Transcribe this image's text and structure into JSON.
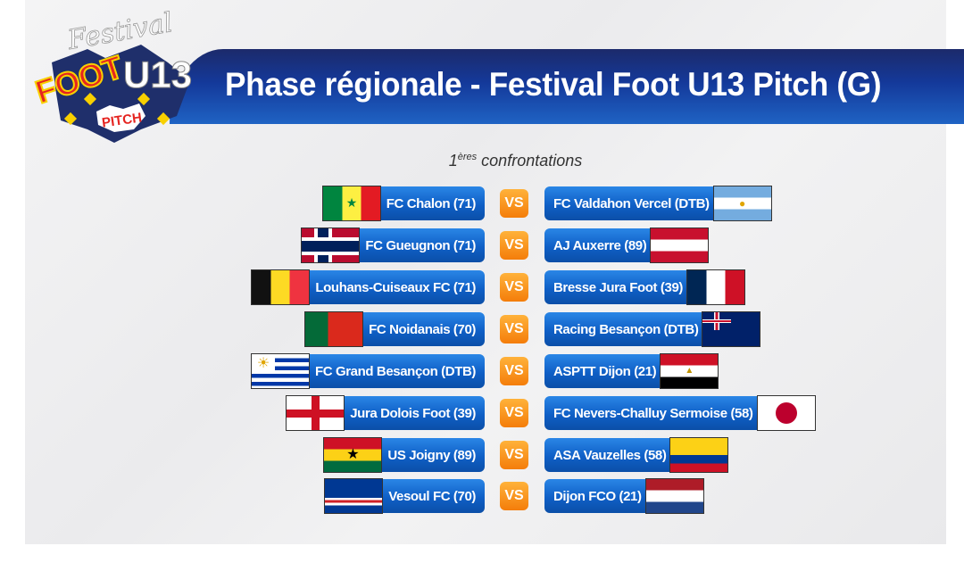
{
  "logo": {
    "text_lines": [
      "Festival",
      "FOOT",
      "U13",
      "PITCH"
    ]
  },
  "header": {
    "title": "Phase régionale - Festival Foot U13 Pitch (G)"
  },
  "subtitle": {
    "number": "1",
    "superscript": "ères",
    "text": "confrontations"
  },
  "vs_label": "VS",
  "matches": [
    {
      "home": "FC Chalon (71)",
      "home_flag": "senegal",
      "away": "FC Valdahon Vercel (DTB)",
      "away_flag": "argentina"
    },
    {
      "home": "FC Gueugnon (71)",
      "home_flag": "norway",
      "away": "AJ Auxerre (89)",
      "away_flag": "austria"
    },
    {
      "home": "Louhans-Cuiseaux FC (71)",
      "home_flag": "belgium",
      "away": "Bresse Jura Foot (39)",
      "away_flag": "france"
    },
    {
      "home": "FC Noidanais (70)",
      "home_flag": "portugal",
      "away": "Racing Besançon (DTB)",
      "away_flag": "new-zealand"
    },
    {
      "home": "FC Grand Besançon (DTB)",
      "home_flag": "uruguay",
      "away": "ASPTT Dijon (21)",
      "away_flag": "egypt"
    },
    {
      "home": "Jura Dolois Foot (39)",
      "home_flag": "england",
      "away": "FC Nevers-Challuy Sermoise (58)",
      "away_flag": "japan"
    },
    {
      "home": "US Joigny (89)",
      "home_flag": "ghana",
      "away": "ASA Vauzelles (58)",
      "away_flag": "colombia"
    },
    {
      "home": "Vesoul FC (70)",
      "home_flag": "cape-verde",
      "away": "Dijon FCO (21)",
      "away_flag": "netherlands"
    }
  ],
  "colors": {
    "banner": "#14399a",
    "team_button": "#0f5fc6",
    "vs_badge": "#f47d0a"
  }
}
